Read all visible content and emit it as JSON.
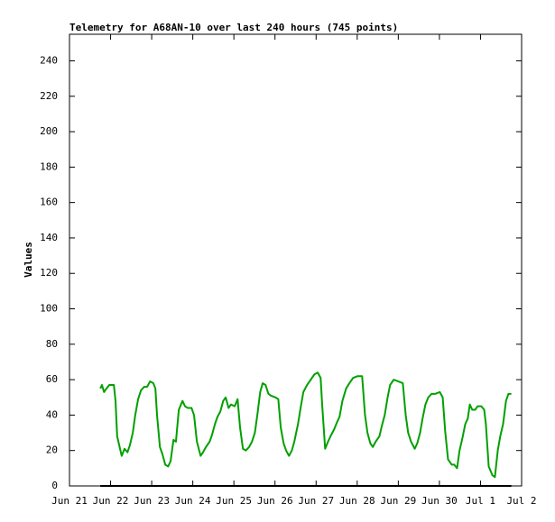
{
  "chart_data": {
    "type": "line",
    "title": "Telemetry for A68AN-10 over last 240 hours (745 points)",
    "ylabel": "Values",
    "xlim": [
      0,
      11
    ],
    "xticks": [
      {
        "value": 0,
        "label": "Jun 21"
      },
      {
        "value": 1,
        "label": "Jun 22"
      },
      {
        "value": 2,
        "label": "Jun 23"
      },
      {
        "value": 3,
        "label": "Jun 24"
      },
      {
        "value": 4,
        "label": "Jun 25"
      },
      {
        "value": 5,
        "label": "Jun 26"
      },
      {
        "value": 6,
        "label": "Jun 27"
      },
      {
        "value": 7,
        "label": "Jun 28"
      },
      {
        "value": 8,
        "label": "Jun 29"
      },
      {
        "value": 9,
        "label": "Jun 30"
      },
      {
        "value": 10,
        "label": "Jul 1"
      },
      {
        "value": 11,
        "label": "Jul 2"
      }
    ],
    "ylim": [
      0,
      255
    ],
    "yticks": [
      0,
      20,
      40,
      60,
      80,
      100,
      120,
      140,
      160,
      180,
      200,
      220,
      240
    ],
    "series": [
      {
        "color": "#00a000",
        "x": [
          0.75,
          0.79,
          0.84,
          0.9,
          0.97,
          1.08,
          1.12,
          1.16,
          1.23,
          1.27,
          1.34,
          1.41,
          1.47,
          1.54,
          1.6,
          1.67,
          1.74,
          1.82,
          1.89,
          1.96,
          2.04,
          2.09,
          2.13,
          2.2,
          2.26,
          2.33,
          2.4,
          2.46,
          2.53,
          2.59,
          2.66,
          2.75,
          2.81,
          2.88,
          2.97,
          3.03,
          3.1,
          3.19,
          3.25,
          3.32,
          3.41,
          3.47,
          3.54,
          3.6,
          3.67,
          3.74,
          3.8,
          3.87,
          3.93,
          4.02,
          4.09,
          4.15,
          4.22,
          4.29,
          4.37,
          4.44,
          4.51,
          4.57,
          4.64,
          4.7,
          4.77,
          4.84,
          4.9,
          5.01,
          5.08,
          5.14,
          5.21,
          5.27,
          5.34,
          5.41,
          5.47,
          5.56,
          5.63,
          5.69,
          5.78,
          5.87,
          5.96,
          6.04,
          6.11,
          6.15,
          6.22,
          6.29,
          6.35,
          6.44,
          6.51,
          6.57,
          6.64,
          6.73,
          6.81,
          6.9,
          7.01,
          7.12,
          7.19,
          7.25,
          7.32,
          7.38,
          7.45,
          7.54,
          7.6,
          7.67,
          7.74,
          7.8,
          7.89,
          8.0,
          8.11,
          8.18,
          8.24,
          8.31,
          8.4,
          8.46,
          8.53,
          8.59,
          8.66,
          8.73,
          8.81,
          8.9,
          9.01,
          9.08,
          9.14,
          9.21,
          9.3,
          9.36,
          9.43,
          9.49,
          9.56,
          9.63,
          9.69,
          9.74,
          9.8,
          9.87,
          9.93,
          10.02,
          10.09,
          10.13,
          10.2,
          10.29,
          10.35,
          10.42,
          10.48,
          10.55,
          10.62,
          10.68,
          10.75
        ],
        "values": [
          55,
          57,
          53,
          55,
          57,
          57,
          48,
          28,
          21,
          17,
          21,
          19,
          23,
          30,
          40,
          49,
          54,
          56,
          56,
          59,
          58,
          55,
          40,
          22,
          18,
          12,
          11,
          14,
          26,
          25,
          43,
          48,
          45,
          44,
          44,
          40,
          25,
          17,
          19,
          22,
          25,
          29,
          35,
          39,
          42,
          48,
          50,
          44,
          46,
          45,
          49,
          33,
          21,
          20,
          22,
          25,
          30,
          40,
          53,
          58,
          57,
          52,
          51,
          50,
          49,
          33,
          24,
          20,
          17,
          20,
          25,
          35,
          45,
          53,
          57,
          60,
          63,
          64,
          61,
          45,
          21,
          25,
          28,
          32,
          36,
          39,
          48,
          55,
          58,
          61,
          62,
          62,
          40,
          30,
          24,
          22,
          25,
          28,
          34,
          40,
          50,
          57,
          60,
          59,
          58,
          40,
          30,
          25,
          21,
          24,
          30,
          38,
          46,
          50,
          52,
          52,
          53,
          50,
          31,
          15,
          12,
          12,
          10,
          20,
          27,
          35,
          38,
          46,
          43,
          43,
          45,
          45,
          43,
          35,
          11,
          6,
          5,
          20,
          28,
          35,
          48,
          52,
          52
        ]
      },
      {
        "color": "#000000",
        "x": [
          0.75,
          10.75
        ],
        "values": [
          0,
          0
        ]
      }
    ]
  }
}
